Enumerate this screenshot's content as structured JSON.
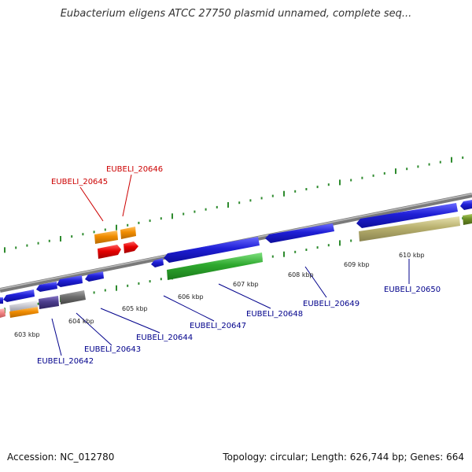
{
  "header": {
    "title": "Eubacterium eligens ATCC 27750 plasmid unnamed, complete seq..."
  },
  "footer": {
    "accession": "Accession: NC_012780",
    "summary": "Topology: circular; Length: 626,744 bp; Genes: 664"
  },
  "map": {
    "backbone_color": "#8a8a8a",
    "tick_color": "#2e8b2e",
    "ticks": [
      {
        "label": "603 kbp"
      },
      {
        "label": "604 kbp"
      },
      {
        "label": "605 kbp"
      },
      {
        "label": "606 kbp"
      },
      {
        "label": "607 kbp"
      },
      {
        "label": "608 kbp"
      },
      {
        "label": "609 kbp"
      },
      {
        "label": "610 kbp"
      }
    ],
    "gene_labels": [
      {
        "name": "EUBELI_20645",
        "color": "#cc0000"
      },
      {
        "name": "EUBELI_20646",
        "color": "#cc0000"
      },
      {
        "name": "EUBELI_20642",
        "color": "#00008b"
      },
      {
        "name": "EUBELI_20643",
        "color": "#00008b"
      },
      {
        "name": "EUBELI_20644",
        "color": "#00008b"
      },
      {
        "name": "EUBELI_20647",
        "color": "#00008b"
      },
      {
        "name": "EUBELI_20648",
        "color": "#00008b"
      },
      {
        "name": "EUBELI_20649",
        "color": "#00008b"
      },
      {
        "name": "EUBELI_20650",
        "color": "#00008b"
      }
    ],
    "feature_colors": {
      "blue": "#1f1fd6",
      "green": "#2ea82e",
      "orange": "#f08c00",
      "red": "#e60000",
      "khaki": "#b8b06e",
      "pink": "#f08080",
      "purple": "#4b3c8c",
      "gray": "#6e6e6e",
      "olive": "#6b8e23",
      "silver": "#c8c8d0"
    }
  }
}
